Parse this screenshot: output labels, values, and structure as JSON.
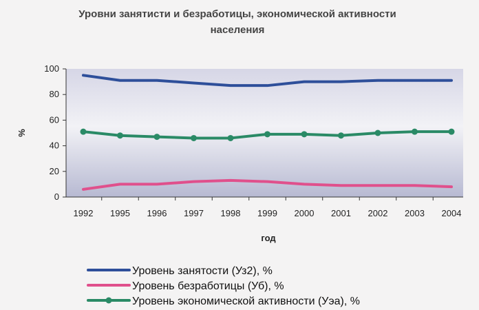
{
  "chart_data": {
    "type": "line",
    "title_line1": "Уровни занятисти и безработицы, экономической активности",
    "title_line2": "населения",
    "xlabel": "год",
    "ylabel": "%",
    "ylim": [
      0,
      100
    ],
    "yticks": [
      0,
      20,
      40,
      60,
      80,
      100
    ],
    "categories": [
      "1992",
      "1995",
      "1996",
      "1997",
      "1998",
      "1999",
      "2000",
      "2001",
      "2002",
      "2003",
      "2004"
    ],
    "grid": false,
    "legend_position": "bottom",
    "series": [
      {
        "name": "Уровень занятости (Уз2), %",
        "color": "#2e4f9a",
        "markers": false,
        "values": [
          95,
          91,
          91,
          89,
          87,
          87,
          90,
          90,
          91,
          91,
          91
        ]
      },
      {
        "name": "Уровень безработицы (Уб), %",
        "color": "#e0508c",
        "markers": false,
        "values": [
          6,
          10,
          10,
          12,
          13,
          12,
          10,
          9,
          9,
          9,
          8
        ]
      },
      {
        "name": "Уровень экономической активности (Уэа), %",
        "color": "#2a8a66",
        "markers": true,
        "values": [
          51,
          48,
          47,
          46,
          46,
          49,
          49,
          48,
          50,
          51,
          51
        ]
      }
    ]
  }
}
